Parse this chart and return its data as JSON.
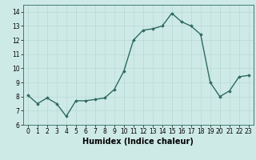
{
  "x": [
    0,
    1,
    2,
    3,
    4,
    5,
    6,
    7,
    8,
    9,
    10,
    11,
    12,
    13,
    14,
    15,
    16,
    17,
    18,
    19,
    20,
    21,
    22,
    23
  ],
  "y": [
    8.1,
    7.5,
    7.9,
    7.5,
    6.6,
    7.7,
    7.7,
    7.8,
    7.9,
    8.5,
    9.8,
    12.0,
    12.7,
    12.8,
    13.0,
    13.9,
    13.3,
    13.0,
    12.4,
    9.0,
    8.0,
    8.4,
    9.4,
    9.5
  ],
  "line_color": "#2e6b5e",
  "marker": "D",
  "marker_size": 1.8,
  "line_width": 1.0,
  "bg_color": "#ceeae7",
  "grid_color": "#b8d8d4",
  "xlabel": "Humidex (Indice chaleur)",
  "ylim": [
    6,
    14.5
  ],
  "xlim": [
    -0.5,
    23.5
  ],
  "yticks": [
    6,
    7,
    8,
    9,
    10,
    11,
    12,
    13,
    14
  ],
  "xticks": [
    0,
    1,
    2,
    3,
    4,
    5,
    6,
    7,
    8,
    9,
    10,
    11,
    12,
    13,
    14,
    15,
    16,
    17,
    18,
    19,
    20,
    21,
    22,
    23
  ],
  "tick_fontsize": 5.5,
  "label_fontsize": 7.0
}
